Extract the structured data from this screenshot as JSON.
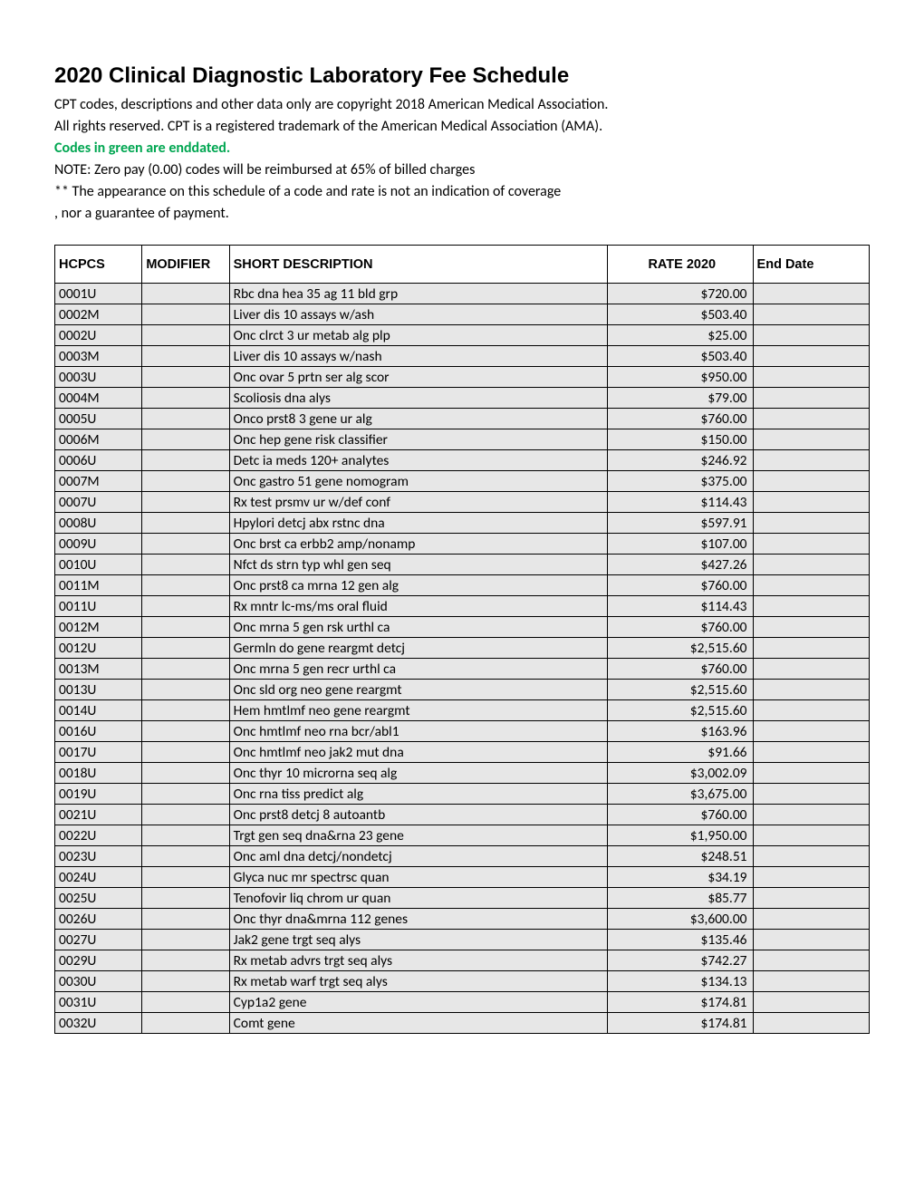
{
  "title": "2020 Clinical Diagnostic Laboratory Fee Schedule",
  "intro": {
    "line1": "CPT codes, descriptions and other data only are copyright 2018 American Medical Association.",
    "line2": "All rights reserved. CPT is a registered trademark of the American Medical Association (AMA).",
    "green_line": "Codes in green are enddated.",
    "note": "NOTE: Zero pay (0.00) codes will be reimbursed at 65% of billed charges",
    "dstar": "** The appearance on this schedule of a code and rate is not an indication of coverage",
    "cont": ", nor a guarantee of payment."
  },
  "colors": {
    "green": "#00a651",
    "row_bg": "#e7e7e7",
    "border": "#000000"
  },
  "table": {
    "headers": {
      "hcpcs": "HCPCS",
      "modifier": "MODIFIER",
      "desc": "SHORT DESCRIPTION",
      "rate": "RATE 2020",
      "end": "End Date"
    },
    "rows": [
      {
        "hcpcs": "0001U",
        "mod": "",
        "desc": "Rbc dna hea 35 ag 11 bld grp",
        "rate": "$720.00",
        "end": ""
      },
      {
        "hcpcs": "0002M",
        "mod": "",
        "desc": "Liver dis 10 assays w/ash",
        "rate": "$503.40",
        "end": ""
      },
      {
        "hcpcs": "0002U",
        "mod": "",
        "desc": "Onc clrct 3 ur metab alg plp",
        "rate": "$25.00",
        "end": ""
      },
      {
        "hcpcs": "0003M",
        "mod": "",
        "desc": "Liver dis 10 assays w/nash",
        "rate": "$503.40",
        "end": ""
      },
      {
        "hcpcs": "0003U",
        "mod": "",
        "desc": "Onc ovar 5 prtn ser alg scor",
        "rate": "$950.00",
        "end": ""
      },
      {
        "hcpcs": "0004M",
        "mod": "",
        "desc": "Scoliosis dna alys",
        "rate": "$79.00",
        "end": ""
      },
      {
        "hcpcs": "0005U",
        "mod": "",
        "desc": "Onco prst8 3 gene ur alg",
        "rate": "$760.00",
        "end": ""
      },
      {
        "hcpcs": "0006M",
        "mod": "",
        "desc": "Onc hep gene risk classifier",
        "rate": "$150.00",
        "end": ""
      },
      {
        "hcpcs": "0006U",
        "mod": "",
        "desc": "Detc ia meds 120+ analytes",
        "rate": "$246.92",
        "end": ""
      },
      {
        "hcpcs": "0007M",
        "mod": "",
        "desc": "Onc gastro 51 gene nomogram",
        "rate": "$375.00",
        "end": ""
      },
      {
        "hcpcs": "0007U",
        "mod": "",
        "desc": "Rx test prsmv ur w/def conf",
        "rate": "$114.43",
        "end": ""
      },
      {
        "hcpcs": "0008U",
        "mod": "",
        "desc": "Hpylori detcj abx rstnc dna",
        "rate": "$597.91",
        "end": ""
      },
      {
        "hcpcs": "0009U",
        "mod": "",
        "desc": "Onc brst ca erbb2 amp/nonamp",
        "rate": "$107.00",
        "end": ""
      },
      {
        "hcpcs": "0010U",
        "mod": "",
        "desc": "Nfct ds strn typ whl gen seq",
        "rate": "$427.26",
        "end": ""
      },
      {
        "hcpcs": "0011M",
        "mod": "",
        "desc": "Onc prst8 ca mrna 12 gen alg",
        "rate": "$760.00",
        "end": ""
      },
      {
        "hcpcs": "0011U",
        "mod": "",
        "desc": "Rx mntr lc-ms/ms oral fluid",
        "rate": "$114.43",
        "end": ""
      },
      {
        "hcpcs": "0012M",
        "mod": "",
        "desc": "Onc mrna 5 gen rsk urthl ca",
        "rate": "$760.00",
        "end": ""
      },
      {
        "hcpcs": "0012U",
        "mod": "",
        "desc": "Germln do gene reargmt detcj",
        "rate": "$2,515.60",
        "end": ""
      },
      {
        "hcpcs": "0013M",
        "mod": "",
        "desc": "Onc mrna 5 gen recr urthl ca",
        "rate": "$760.00",
        "end": ""
      },
      {
        "hcpcs": "0013U",
        "mod": "",
        "desc": "Onc sld org neo gene reargmt",
        "rate": "$2,515.60",
        "end": ""
      },
      {
        "hcpcs": "0014U",
        "mod": "",
        "desc": "Hem hmtlmf neo gene reargmt",
        "rate": "$2,515.60",
        "end": ""
      },
      {
        "hcpcs": "0016U",
        "mod": "",
        "desc": "Onc hmtlmf neo rna bcr/abl1",
        "rate": "$163.96",
        "end": ""
      },
      {
        "hcpcs": "0017U",
        "mod": "",
        "desc": "Onc hmtlmf neo jak2 mut dna",
        "rate": "$91.66",
        "end": ""
      },
      {
        "hcpcs": "0018U",
        "mod": "",
        "desc": "Onc thyr 10 microrna seq alg",
        "rate": "$3,002.09",
        "end": ""
      },
      {
        "hcpcs": "0019U",
        "mod": "",
        "desc": "Onc rna tiss predict alg",
        "rate": "$3,675.00",
        "end": ""
      },
      {
        "hcpcs": "0021U",
        "mod": "",
        "desc": "Onc prst8 detcj 8 autoantb",
        "rate": "$760.00",
        "end": ""
      },
      {
        "hcpcs": "0022U",
        "mod": "",
        "desc": "Trgt gen seq dna&rna 23 gene",
        "rate": "$1,950.00",
        "end": ""
      },
      {
        "hcpcs": "0023U",
        "mod": "",
        "desc": "Onc aml dna detcj/nondetcj",
        "rate": "$248.51",
        "end": ""
      },
      {
        "hcpcs": "0024U",
        "mod": "",
        "desc": "Glyca nuc mr spectrsc quan",
        "rate": "$34.19",
        "end": ""
      },
      {
        "hcpcs": "0025U",
        "mod": "",
        "desc": "Tenofovir liq chrom ur quan",
        "rate": "$85.77",
        "end": ""
      },
      {
        "hcpcs": "0026U",
        "mod": "",
        "desc": "Onc thyr dna&mrna 112 genes",
        "rate": "$3,600.00",
        "end": ""
      },
      {
        "hcpcs": "0027U",
        "mod": "",
        "desc": "Jak2 gene trgt seq alys",
        "rate": "$135.46",
        "end": ""
      },
      {
        "hcpcs": "0029U",
        "mod": "",
        "desc": "Rx metab advrs trgt seq alys",
        "rate": "$742.27",
        "end": ""
      },
      {
        "hcpcs": "0030U",
        "mod": "",
        "desc": "Rx metab warf trgt seq alys",
        "rate": "$134.13",
        "end": ""
      },
      {
        "hcpcs": "0031U",
        "mod": "",
        "desc": "Cyp1a2 gene",
        "rate": "$174.81",
        "end": ""
      },
      {
        "hcpcs": "0032U",
        "mod": "",
        "desc": "Comt gene",
        "rate": "$174.81",
        "end": ""
      }
    ]
  }
}
